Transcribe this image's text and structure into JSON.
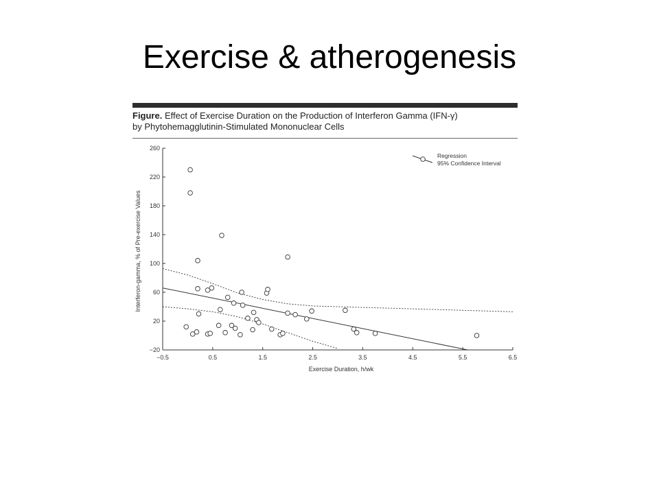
{
  "slide": {
    "title": "Exercise & atherogenesis"
  },
  "figure": {
    "label": "Figure.",
    "caption_line1": "Effect of Exercise Duration on the Production of Interferon Gamma (IFN-γ)",
    "caption_line2": "by Phytohemagglutinin-Stimulated Mononuclear Cells"
  },
  "chart_data": {
    "type": "scatter",
    "title": "",
    "xlabel": "Exercise Duration, h/wk",
    "ylabel": "Interferon-gamma, % of Pre-exercise Values",
    "xlim": [
      -0.5,
      6.5
    ],
    "ylim": [
      -20,
      260
    ],
    "x_ticks": [
      -0.5,
      0.5,
      1.5,
      2.5,
      3.5,
      4.5,
      5.5,
      6.5
    ],
    "x_tick_labels": [
      "−0.5",
      "0.5",
      "1.5",
      "2.5",
      "3.5",
      "4.5",
      "5.5",
      "6.5"
    ],
    "y_ticks": [
      -20,
      20,
      60,
      100,
      140,
      180,
      220,
      260
    ],
    "y_tick_labels": [
      "−20",
      "20",
      "60",
      "100",
      "140",
      "180",
      "220",
      "260"
    ],
    "legend": {
      "position": "top-right",
      "entries": [
        "Regression",
        "95% Confidence Interval"
      ]
    },
    "points": [
      [
        -0.03,
        12
      ],
      [
        0.05,
        230
      ],
      [
        0.05,
        198
      ],
      [
        0.1,
        2
      ],
      [
        0.18,
        5
      ],
      [
        0.2,
        104
      ],
      [
        0.2,
        65
      ],
      [
        0.22,
        30
      ],
      [
        0.4,
        63
      ],
      [
        0.4,
        2
      ],
      [
        0.45,
        3
      ],
      [
        0.48,
        66
      ],
      [
        0.62,
        14
      ],
      [
        0.65,
        36
      ],
      [
        0.68,
        139
      ],
      [
        0.75,
        4
      ],
      [
        0.8,
        53
      ],
      [
        0.88,
        14
      ],
      [
        0.92,
        45
      ],
      [
        0.95,
        10
      ],
      [
        1.05,
        1
      ],
      [
        1.08,
        60
      ],
      [
        1.1,
        42
      ],
      [
        1.2,
        24
      ],
      [
        1.3,
        8
      ],
      [
        1.32,
        32
      ],
      [
        1.38,
        22
      ],
      [
        1.42,
        18
      ],
      [
        1.58,
        59
      ],
      [
        1.6,
        64
      ],
      [
        1.68,
        9
      ],
      [
        1.85,
        1
      ],
      [
        1.9,
        3
      ],
      [
        2.0,
        109
      ],
      [
        2.0,
        31
      ],
      [
        2.15,
        29
      ],
      [
        2.38,
        23
      ],
      [
        2.48,
        34
      ],
      [
        3.15,
        35
      ],
      [
        3.32,
        9
      ],
      [
        3.38,
        4
      ],
      [
        3.75,
        3
      ],
      [
        5.78,
        0
      ]
    ],
    "regression": {
      "x": [
        -0.5,
        5.6
      ],
      "y": [
        66,
        -20
      ]
    },
    "ci_upper": {
      "x": [
        -0.5,
        0.0,
        0.5,
        1.0,
        1.5,
        2.0,
        2.5,
        3.0,
        4.0,
        5.0,
        6.5
      ],
      "y": [
        93,
        84,
        72,
        59,
        50,
        44,
        41,
        40,
        38,
        36,
        33
      ]
    },
    "ci_lower": {
      "x": [
        -0.5,
        0.0,
        0.5,
        1.0,
        1.5,
        2.0,
        2.5,
        3.0
      ],
      "y": [
        40,
        37,
        33,
        26,
        16,
        4,
        -8,
        -18
      ]
    },
    "grid": false
  }
}
